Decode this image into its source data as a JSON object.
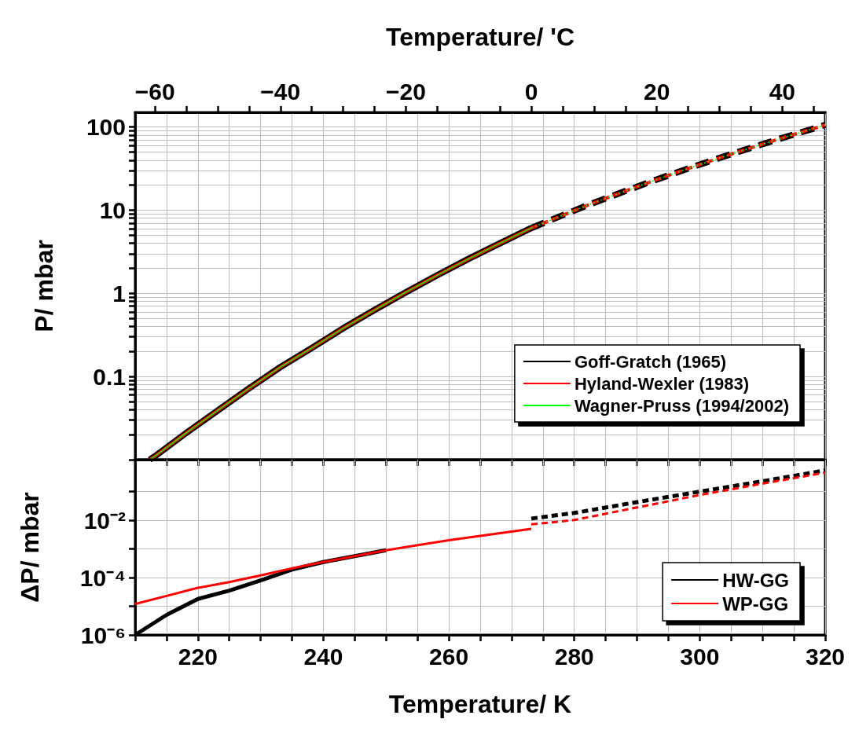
{
  "chart_data": [
    {
      "type": "line",
      "x2label": "Temperature/ 'C",
      "ylabel": "P/ mbar",
      "log": "y",
      "grid": true,
      "legend": "bottom right",
      "marker": "none",
      "tick_labels": "y",
      "xlim": [
        210,
        320
      ],
      "xticks": [
        {
          "value": 210,
          "label": null
        },
        {
          "value": 215,
          "label": null
        },
        {
          "value": 220,
          "label": null
        },
        {
          "value": 225,
          "label": null
        },
        {
          "value": 230,
          "label": null
        },
        {
          "value": 235,
          "label": null
        },
        {
          "value": 240,
          "label": null
        },
        {
          "value": 245,
          "label": null
        },
        {
          "value": 250,
          "label": null
        },
        {
          "value": 255,
          "label": null
        },
        {
          "value": 260,
          "label": null
        },
        {
          "value": 265,
          "label": null
        },
        {
          "value": 270,
          "label": null
        },
        {
          "value": 275,
          "label": null
        },
        {
          "value": 280,
          "label": null
        },
        {
          "value": 285,
          "label": null
        },
        {
          "value": 290,
          "label": null
        },
        {
          "value": 295,
          "label": null
        },
        {
          "value": 300,
          "label": null
        },
        {
          "value": 305,
          "label": null
        },
        {
          "value": 310,
          "label": null
        },
        {
          "value": 315,
          "label": null
        },
        {
          "value": 320,
          "label": null
        }
      ],
      "x2lim": [
        -63.15,
        46.85
      ],
      "x2ticks": [
        {
          "value": -60,
          "label": "−60"
        },
        {
          "value": -55,
          "label": null
        },
        {
          "value": -50,
          "label": null
        },
        {
          "value": -45,
          "label": null
        },
        {
          "value": -40,
          "label": "−40"
        },
        {
          "value": -35,
          "label": null
        },
        {
          "value": -30,
          "label": null
        },
        {
          "value": -25,
          "label": null
        },
        {
          "value": -20,
          "label": "−20"
        },
        {
          "value": -15,
          "label": null
        },
        {
          "value": -10,
          "label": null
        },
        {
          "value": -5,
          "label": null
        },
        0,
        {
          "value": 5,
          "label": null
        },
        {
          "value": 10,
          "label": null
        },
        {
          "value": 15,
          "label": null
        },
        20,
        {
          "value": 25,
          "label": null
        },
        {
          "value": 30,
          "label": null
        },
        {
          "value": 35,
          "label": null
        },
        40,
        {
          "value": 45,
          "label": null
        }
      ],
      "ylim": [
        0.01,
        150
      ],
      "yticks": [
        {
          "value": 0.01,
          "label": null
        },
        {
          "value": 0.02,
          "label": null
        },
        {
          "value": 0.03,
          "label": null
        },
        {
          "value": 0.04,
          "label": null
        },
        {
          "value": 0.05,
          "label": null
        },
        {
          "value": 0.06,
          "label": null
        },
        {
          "value": 0.07,
          "label": null
        },
        {
          "value": 0.08,
          "label": null
        },
        {
          "value": 0.09,
          "label": null
        },
        0.1,
        {
          "value": 0.2,
          "label": null
        },
        {
          "value": 0.3,
          "label": null
        },
        {
          "value": 0.4,
          "label": null
        },
        {
          "value": 0.5,
          "label": null
        },
        {
          "value": 0.6,
          "label": null
        },
        {
          "value": 0.7,
          "label": null
        },
        {
          "value": 0.8,
          "label": null
        },
        {
          "value": 0.9,
          "label": null
        },
        1,
        {
          "value": 2,
          "label": null
        },
        {
          "value": 3,
          "label": null
        },
        {
          "value": 4,
          "label": null
        },
        {
          "value": 5,
          "label": null
        },
        {
          "value": 6,
          "label": null
        },
        {
          "value": 7,
          "label": null
        },
        {
          "value": 8,
          "label": null
        },
        {
          "value": 9,
          "label": null
        },
        10,
        {
          "value": 20,
          "label": null
        },
        {
          "value": 30,
          "label": null
        },
        {
          "value": 40,
          "label": null
        },
        {
          "value": 50,
          "label": null
        },
        {
          "value": 60,
          "label": null
        },
        {
          "value": 70,
          "label": null
        },
        {
          "value": 80,
          "label": null
        },
        {
          "value": 90,
          "label": null
        },
        100
      ],
      "series": [
        {
          "name": "Goff-Gratch (1965)",
          "color": "#000000",
          "line_style": "solid",
          "x": [
            212.3,
            213.15,
            218.15,
            223.15,
            228.15,
            233.15,
            238.15,
            243.15,
            248.15,
            253.15,
            258.15,
            263.15,
            268.15,
            273.15
          ],
          "values": [
            0.01,
            0.011,
            0.021,
            0.039,
            0.072,
            0.13,
            0.22,
            0.38,
            0.63,
            1.03,
            1.65,
            2.6,
            4.0,
            6.1
          ]
        },
        {
          "color": "#000000",
          "line_style": "dashed",
          "x": [
            273.15,
            278.15,
            283.15,
            288.15,
            293.15,
            298.15,
            303.15,
            308.15,
            313.15,
            318.15,
            320
          ],
          "values": [
            6.1,
            8.7,
            12.3,
            17.0,
            23.4,
            31.7,
            42.5,
            56.2,
            73.8,
            95.9,
            106
          ]
        },
        {
          "name": "Hyland-Wexler (1983)",
          "color": "#ff0000",
          "line_style": "solid",
          "x": [
            212.3,
            213.15,
            218.15,
            223.15,
            228.15,
            233.15,
            238.15,
            243.15,
            248.15,
            253.15,
            258.15,
            263.15,
            268.15,
            273.15
          ],
          "values": [
            0.01,
            0.011,
            0.021,
            0.039,
            0.072,
            0.13,
            0.22,
            0.38,
            0.63,
            1.03,
            1.65,
            2.6,
            4.0,
            6.1
          ]
        },
        {
          "color": "#ff0000",
          "line_style": "dashed",
          "x": [
            273.15,
            278.15,
            283.15,
            288.15,
            293.15,
            298.15,
            303.15,
            308.15,
            313.15,
            318.15,
            320
          ],
          "values": [
            6.1,
            8.7,
            12.3,
            17.0,
            23.4,
            31.7,
            42.5,
            56.2,
            73.8,
            95.9,
            106
          ]
        },
        {
          "name": "Wagner-Pruss (1994/2002)",
          "color": "#00ff00",
          "line_style": "solid",
          "x": [
            212.3,
            213.15,
            218.15,
            223.15,
            228.15,
            233.15,
            238.15,
            243.15,
            248.15,
            253.15,
            258.15,
            263.15,
            268.15,
            273.15
          ],
          "values": [
            0.01,
            0.011,
            0.021,
            0.039,
            0.072,
            0.13,
            0.22,
            0.38,
            0.63,
            1.03,
            1.65,
            2.6,
            4.0,
            6.1
          ]
        },
        {
          "color": "#00ff00",
          "line_style": "dotted",
          "x": [
            273.15,
            278.15,
            283.15,
            288.15,
            293.15,
            298.15,
            303.15,
            308.15,
            313.15,
            318.15,
            320
          ],
          "values": [
            6.1,
            8.7,
            12.3,
            17.0,
            23.4,
            31.7,
            42.5,
            56.2,
            73.8,
            95.9,
            106
          ]
        }
      ]
    },
    {
      "type": "line",
      "xlabel": "Temperature/ K",
      "ylabel": "ΔP/ mbar",
      "log": "y",
      "grid": true,
      "legend": "bottom right",
      "marker": "none",
      "xlim": [
        210,
        320
      ],
      "xticks": [
        {
          "value": 210,
          "label": null
        },
        {
          "value": 215,
          "label": null
        },
        220,
        {
          "value": 225,
          "label": null
        },
        {
          "value": 230,
          "label": null
        },
        {
          "value": 235,
          "label": null
        },
        240,
        {
          "value": 245,
          "label": null
        },
        {
          "value": 250,
          "label": null
        },
        {
          "value": 255,
          "label": null
        },
        260,
        {
          "value": 265,
          "label": null
        },
        {
          "value": 270,
          "label": null
        },
        {
          "value": 275,
          "label": null
        },
        280,
        {
          "value": 285,
          "label": null
        },
        {
          "value": 290,
          "label": null
        },
        {
          "value": 295,
          "label": null
        },
        300,
        {
          "value": 305,
          "label": null
        },
        {
          "value": 310,
          "label": null
        },
        {
          "value": 315,
          "label": null
        },
        320
      ],
      "ylim": [
        1e-06,
        1.3
      ],
      "yticks": [
        {
          "value": 1e-06,
          "label": "10⁻⁶"
        },
        {
          "value": 1e-05,
          "label": null
        },
        {
          "value": 0.0001,
          "label": "10⁻⁴"
        },
        {
          "value": 0.001,
          "label": null
        },
        {
          "value": 0.01,
          "label": "10⁻²"
        },
        {
          "value": 0.1,
          "label": null
        }
      ],
      "series": [
        {
          "name": "HW-GG",
          "color": "#000000",
          "line_style": "solid",
          "x": [
            210,
            215,
            220,
            225,
            230,
            235,
            240,
            250
          ],
          "values": [
            1e-06,
            5e-06,
            1.8e-05,
            3.5e-05,
            8e-05,
            0.00019,
            0.00035,
            0.0009
          ]
        },
        {
          "color": "#000000",
          "line_style": "dashed",
          "x": [
            273.15,
            280,
            290,
            300,
            310,
            320
          ],
          "values": [
            0.0115,
            0.018,
            0.043,
            0.1,
            0.23,
            0.55
          ]
        },
        {
          "name": "WP-GG",
          "color": "#ff0000",
          "line_style": "solid",
          "x": [
            210,
            215,
            220,
            225,
            230,
            235,
            240,
            250,
            260,
            273.15
          ],
          "values": [
            1.2e-05,
            2.3e-05,
            4.4e-05,
            7e-05,
            0.00012,
            0.00021,
            0.00035,
            0.0009,
            0.002,
            0.005
          ]
        },
        {
          "color": "#ff0000",
          "line_style": "dashed",
          "x": [
            273.15,
            280,
            290,
            300,
            310,
            320
          ],
          "values": [
            0.0072,
            0.0102,
            0.028,
            0.076,
            0.19,
            0.46
          ]
        }
      ]
    }
  ]
}
